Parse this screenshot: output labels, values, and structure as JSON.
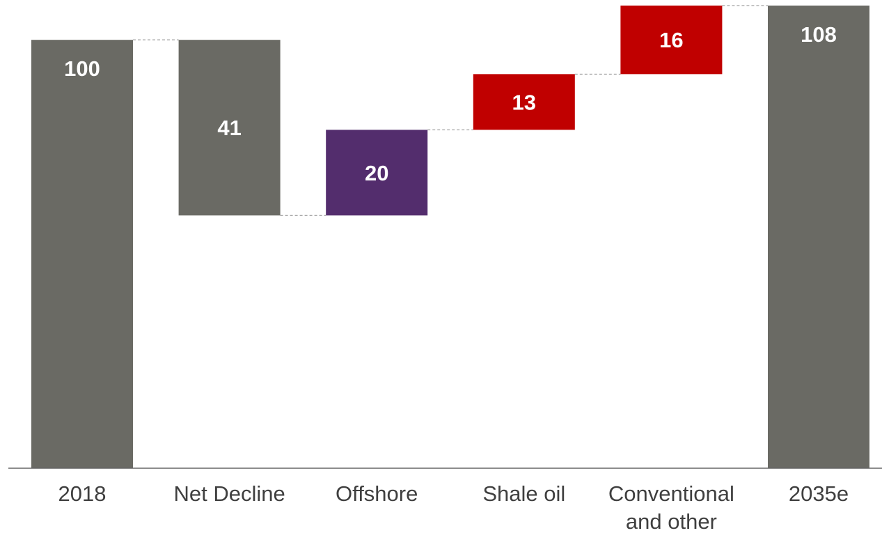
{
  "chart_data": {
    "type": "bar",
    "subtype": "waterfall",
    "categories": [
      [
        "2018"
      ],
      [
        "Net Decline"
      ],
      [
        "Offshore"
      ],
      [
        "Shale oil"
      ],
      [
        "Conventional",
        "and other"
      ],
      [
        "2035e"
      ]
    ],
    "steps": [
      {
        "label": "100",
        "kind": "total",
        "start": 0,
        "end": 100,
        "color": "#6a6a64"
      },
      {
        "label": "41",
        "kind": "decrease",
        "start": 100,
        "end": 59,
        "color": "#6a6a64"
      },
      {
        "label": "20",
        "kind": "increase",
        "start": 59,
        "end": 79,
        "color": "#532d6d"
      },
      {
        "label": "13",
        "kind": "increase",
        "start": 79,
        "end": 92,
        "color": "#c00000"
      },
      {
        "label": "16",
        "kind": "increase",
        "start": 92,
        "end": 108,
        "color": "#c00000"
      },
      {
        "label": "108",
        "kind": "total",
        "start": 0,
        "end": 108,
        "color": "#6a6a64"
      }
    ],
    "ylim": [
      0,
      108
    ],
    "grid": false,
    "legend": "none",
    "connectors": true
  }
}
